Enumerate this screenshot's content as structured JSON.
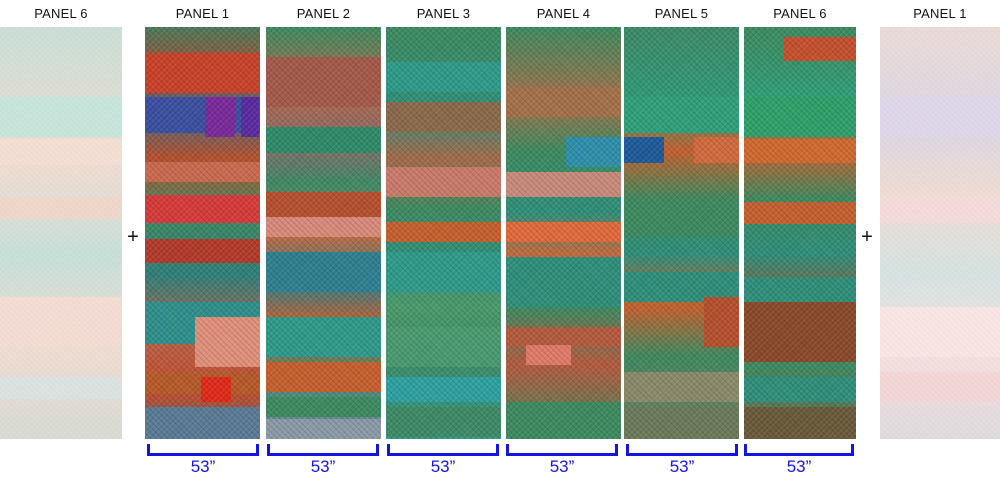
{
  "left_preview": {
    "label": "PANEL 6"
  },
  "right_preview": {
    "label": "PANEL 1"
  },
  "joiner": "+",
  "panels": [
    {
      "label": "PANEL 1",
      "width_label": "53”"
    },
    {
      "label": "PANEL 2",
      "width_label": "53”"
    },
    {
      "label": "PANEL 3",
      "width_label": "53”"
    },
    {
      "label": "PANEL 4",
      "width_label": "53”"
    },
    {
      "label": "PANEL 5",
      "width_label": "53”"
    },
    {
      "label": "PANEL 6",
      "width_label": "53”"
    }
  ],
  "colors": {
    "bracket": "#1515e0",
    "teal": "#2f8f78",
    "green": "#3e8a55",
    "orange": "#c9622e",
    "salmon": "#d9806e",
    "blue": "#3a5fa0",
    "purple": "#6a3a9a",
    "red": "#d63a2a"
  }
}
